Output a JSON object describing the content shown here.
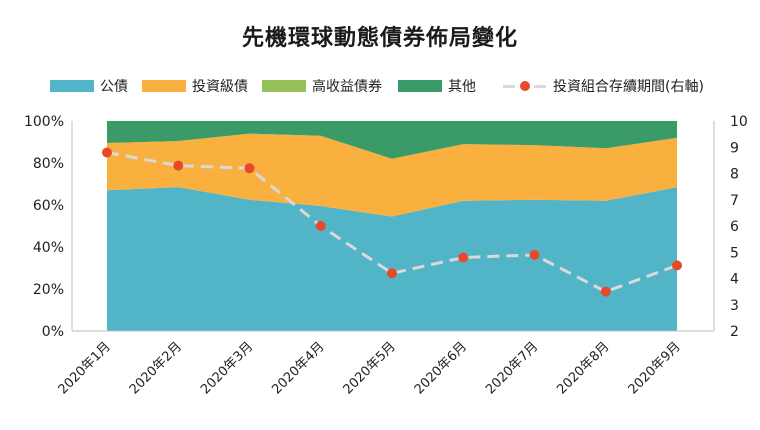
{
  "chart_data": {
    "type": "area",
    "title": "先機環球動態債券佈局變化",
    "categories": [
      "2020年1月",
      "2020年2月",
      "2020年3月",
      "2020年4月",
      "2020年5月",
      "2020年6月",
      "2020年7月",
      "2020年8月",
      "2020年9月"
    ],
    "series": [
      {
        "name": "公債",
        "color": "#52b5c7",
        "values": [
          67,
          68.5,
          62.5,
          59.5,
          54.5,
          62,
          62.5,
          62,
          68.5
        ]
      },
      {
        "name": "投資級債",
        "color": "#f9b03e",
        "values": [
          22.5,
          22,
          31.5,
          33.5,
          27.5,
          27,
          26,
          25,
          23.5
        ]
      },
      {
        "name": "高收益債券",
        "color": "#96c05a",
        "values": [
          0,
          0,
          0,
          0,
          0,
          0,
          0,
          0,
          0
        ]
      },
      {
        "name": "其他",
        "color": "#3a9a68",
        "values": [
          10.5,
          9.5,
          6,
          7,
          18,
          11,
          11.5,
          13,
          8
        ]
      },
      {
        "name": "投資組合存續期間(右軸)",
        "axis": "right",
        "color": "#e8492b",
        "line_color": "#d9d9d9",
        "values": [
          8.8,
          8.3,
          8.2,
          6.0,
          4.2,
          4.8,
          4.9,
          3.5,
          4.5
        ]
      }
    ],
    "left_axis": {
      "ticks": [
        "0%",
        "20%",
        "40%",
        "60%",
        "80%",
        "100%"
      ],
      "ylim": [
        0,
        100
      ]
    },
    "right_axis": {
      "ticks": [
        "2",
        "3",
        "4",
        "5",
        "6",
        "7",
        "8",
        "9",
        "10"
      ],
      "ylim": [
        2,
        10
      ]
    },
    "grid": false,
    "legend_position": "top"
  }
}
